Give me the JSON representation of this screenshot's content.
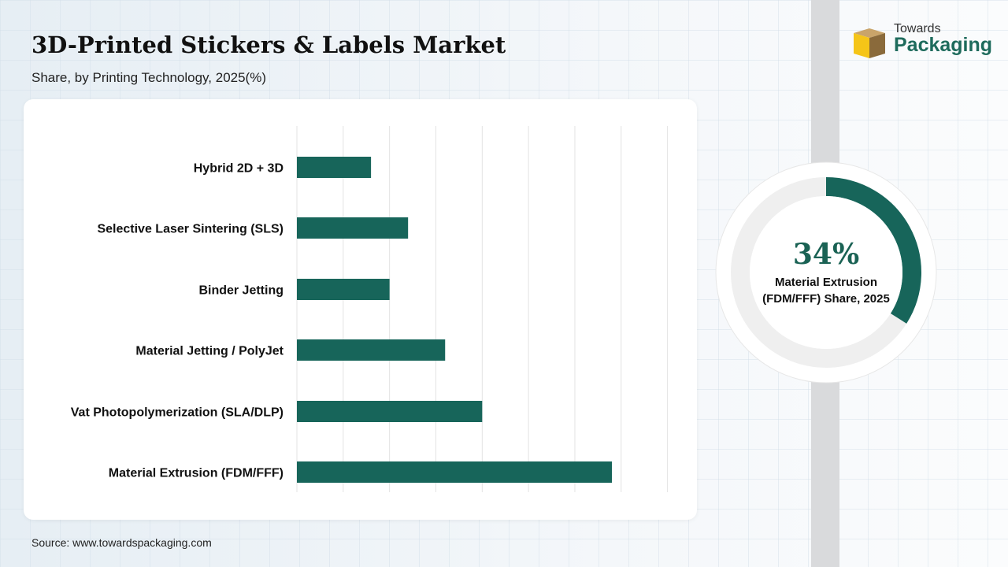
{
  "header": {
    "title": "3D-Printed Stickers & Labels Market",
    "subtitle": "Share, by Printing Technology, 2025(%)"
  },
  "logo": {
    "line1": "Towards",
    "line2": "Packaging"
  },
  "source": "Source: www.towardspackaging.com",
  "colors": {
    "bar": "#17655a",
    "donut_track": "#efefef",
    "donut_fill": "#17655a",
    "accent": "#1e6b5c"
  },
  "chart_data": [
    {
      "type": "bar",
      "orientation": "horizontal",
      "categories": [
        "Hybrid 2D + 3D",
        "Selective Laser Sintering (SLS)",
        "Binder Jetting",
        "Material Jetting / PolyJet",
        "Vat Photopolymerization (SLA/DLP)",
        "Material Extrusion (FDM/FFF)"
      ],
      "values": [
        8,
        12,
        10,
        16,
        20,
        34
      ],
      "xlim": [
        0,
        40
      ],
      "grid": true,
      "title": "",
      "xlabel": "",
      "ylabel": ""
    },
    {
      "type": "pie",
      "style": "donut",
      "categories": [
        "Material Extrusion (FDM/FFF)"
      ],
      "values": [
        34
      ],
      "value_label": "34%",
      "label": "Material Extrusion (FDM/FFF) Share, 2025"
    }
  ]
}
